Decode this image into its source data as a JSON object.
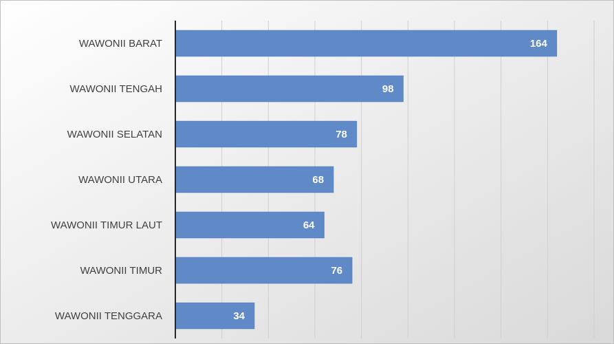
{
  "chart_data": {
    "type": "bar",
    "orientation": "horizontal",
    "categories": [
      "WAWONII BARAT",
      "WAWONII TENGAH",
      "WAWONII SELATAN",
      "WAWONII UTARA",
      "WAWONII TIMUR LAUT",
      "WAWONII TIMUR",
      "WAWONII TENGGARA"
    ],
    "values": [
      164,
      98,
      78,
      68,
      64,
      76,
      34
    ],
    "color": "#5f8ac7",
    "xlim": [
      0,
      180
    ],
    "xticks": [
      0,
      20,
      40,
      60,
      80,
      100,
      120,
      140,
      160,
      180
    ],
    "grid": true
  }
}
